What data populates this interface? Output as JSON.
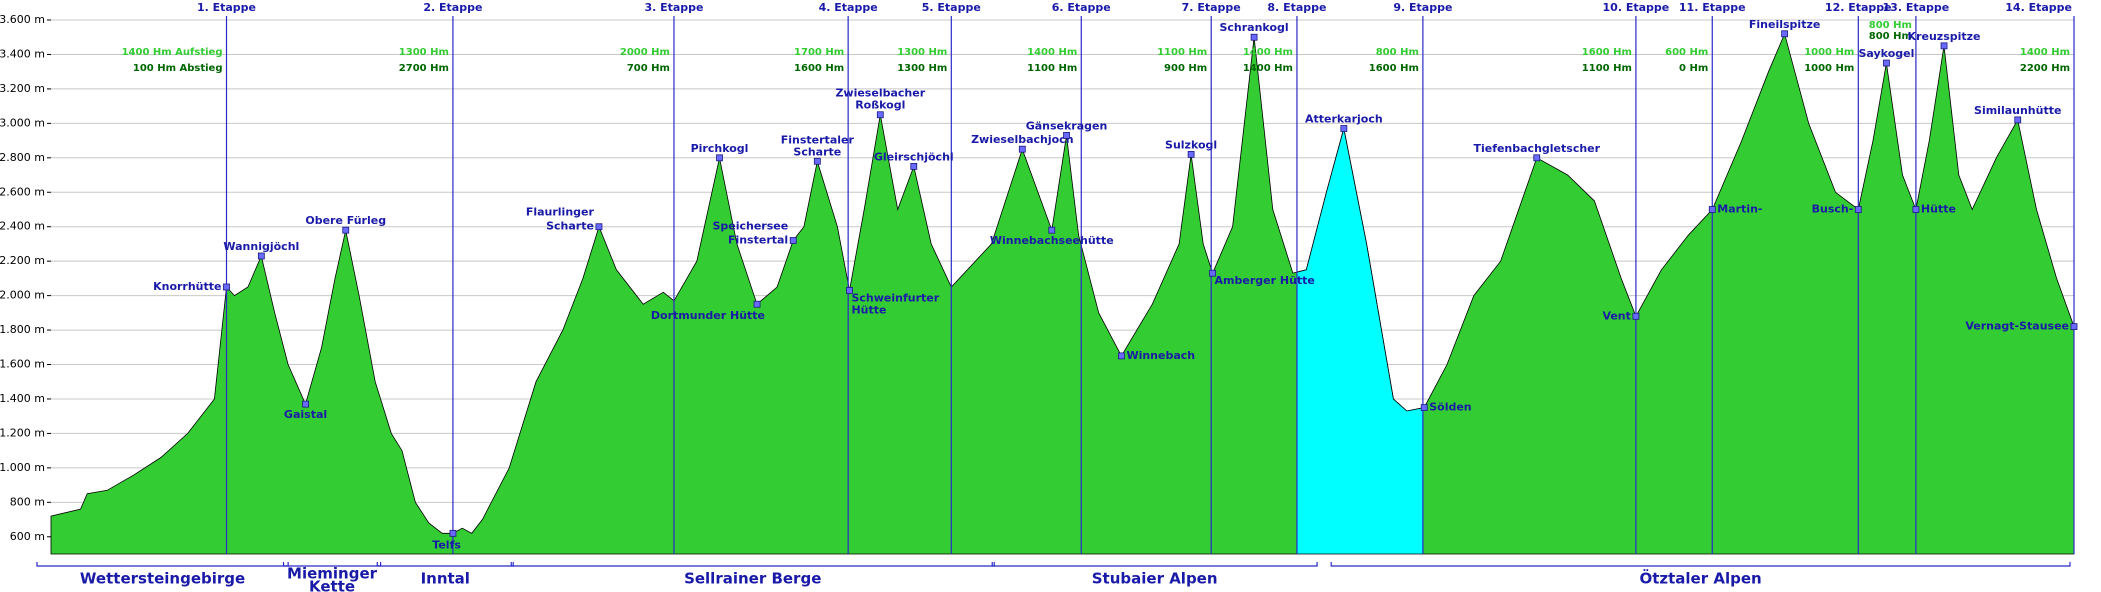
{
  "chart_data": {
    "type": "area",
    "ylim": [
      500,
      3600
    ],
    "yticks": [
      {
        "value": 600,
        "label": "600 m"
      },
      {
        "value": 800,
        "label": "800 m"
      },
      {
        "value": 1000,
        "label": "1.000 m"
      },
      {
        "value": 1200,
        "label": "1.200 m"
      },
      {
        "value": 1400,
        "label": "1.400 m"
      },
      {
        "value": 1600,
        "label": "1.600 m"
      },
      {
        "value": 1800,
        "label": "1.800 m"
      },
      {
        "value": 2000,
        "label": "2.000 m"
      },
      {
        "value": 2200,
        "label": "2.200 m"
      },
      {
        "value": 2400,
        "label": "2.400 m"
      },
      {
        "value": 2600,
        "label": "2.600 m"
      },
      {
        "value": 2800,
        "label": "2.800 m"
      },
      {
        "value": 3000,
        "label": "3.000 m"
      },
      {
        "value": 3200,
        "label": "3.200 m"
      },
      {
        "value": 3400,
        "label": "3.400 m"
      },
      {
        "value": 3600,
        "label": "3.600 m"
      }
    ],
    "grid": true,
    "xlim": [
      38,
      1548
    ],
    "color": "#33cc33",
    "profile": {
      "x": [
        38,
        60,
        65,
        80,
        100,
        120,
        140,
        160,
        169,
        175,
        185,
        195,
        205,
        215,
        228,
        240,
        250,
        258,
        268,
        280,
        292,
        300,
        310,
        320,
        330,
        338,
        345,
        352,
        360,
        380,
        400,
        420,
        435,
        447,
        460,
        480,
        495,
        503,
        520,
        537,
        550,
        565,
        580,
        592,
        600,
        610,
        625,
        634,
        645,
        657,
        670,
        682,
        695,
        710,
        740,
        763,
        785,
        796,
        805,
        820,
        837,
        860,
        880,
        889,
        898,
        905,
        920,
        936,
        950,
        965,
        975,
        990,
        1003,
        1020,
        1040,
        1050,
        1063,
        1080,
        1100,
        1120,
        1147,
        1170,
        1190,
        1210,
        1221,
        1240,
        1260,
        1278,
        1300,
        1320,
        1332,
        1350,
        1370,
        1387,
        1398,
        1408,
        1420,
        1430,
        1440,
        1451,
        1462,
        1472,
        1490,
        1506,
        1520,
        1535,
        1548
      ],
      "values": [
        720,
        760,
        850,
        870,
        960,
        1060,
        1200,
        1400,
        2050,
        2000,
        2050,
        2230,
        1900,
        1600,
        1370,
        1700,
        2100,
        2380,
        2000,
        1500,
        1200,
        1100,
        800,
        680,
        620,
        620,
        650,
        620,
        700,
        1000,
        1500,
        1800,
        2100,
        2400,
        2150,
        1950,
        2020,
        1970,
        2200,
        2800,
        2300,
        1950,
        2050,
        2320,
        2400,
        2780,
        2400,
        2030,
        2500,
        3050,
        2500,
        2750,
        2300,
        2050,
        2300,
        2850,
        2380,
        2930,
        2350,
        1900,
        1650,
        1950,
        2300,
        2820,
        2300,
        2130,
        2400,
        3500,
        2500,
        2130,
        2150,
        2600,
        2970,
        2300,
        1400,
        1330,
        1350,
        1600,
        2000,
        2200,
        2800,
        2700,
        2550,
        2100,
        1880,
        2150,
        2350,
        2500,
        2900,
        3300,
        3520,
        3000,
        2600,
        2500,
        2900,
        3350,
        2700,
        2500,
        2900,
        3450,
        2700,
        2500,
        2800,
        3020,
        2500,
        2100,
        1820
      ]
    },
    "highlight": {
      "from": 968,
      "to": 1062,
      "color": "#00ffff"
    },
    "stages": [
      {
        "label": "1. Etappe",
        "x": 169,
        "ascent": "1400 Hm Aufstieg",
        "descent": "100 Hm Abstieg"
      },
      {
        "label": "2. Etappe",
        "x": 338,
        "ascent": "1300 Hm",
        "descent": "2700 Hm"
      },
      {
        "label": "3. Etappe",
        "x": 503,
        "ascent": "2000 Hm",
        "descent": "700 Hm"
      },
      {
        "label": "4. Etappe",
        "x": 633,
        "ascent": "1700 Hm",
        "descent": "1600 Hm"
      },
      {
        "label": "5. Etappe",
        "x": 710,
        "ascent": "1300 Hm",
        "descent": "1300 Hm"
      },
      {
        "label": "6. Etappe",
        "x": 807,
        "ascent": "1400 Hm",
        "descent": "1100 Hm"
      },
      {
        "label": "7. Etappe",
        "x": 904,
        "ascent": "1100 Hm",
        "descent": "900 Hm"
      },
      {
        "label": "8. Etappe",
        "x": 968,
        "ascent": "1400 Hm",
        "descent": "1400 Hm"
      },
      {
        "label": "9. Etappe",
        "x": 1062,
        "ascent": "800 Hm",
        "descent": "1600 Hm"
      },
      {
        "label": "10. Etappe",
        "x": 1221,
        "ascent": "1600 Hm",
        "descent": "1100 Hm"
      },
      {
        "label": "11. Etappe",
        "x": 1278,
        "ascent": "600 Hm",
        "descent": "0 Hm"
      },
      {
        "label": "12. Etappe",
        "x": 1387,
        "ascent": "1000 Hm",
        "descent": "1000 Hm"
      },
      {
        "label": "13. Etappe",
        "x": 1430,
        "ascent": "800 Hm",
        "descent": "800 Hm"
      },
      {
        "label": "14. Etappe",
        "x": 1548,
        "ascent": "1400 Hm",
        "descent": "2200 Hm"
      }
    ],
    "points": [
      {
        "lines": [
          "Knorrhütte"
        ],
        "x": 169,
        "elev": 2050
      },
      {
        "lines": [
          "Wannigjöchl"
        ],
        "x": 195,
        "elev": 2230
      },
      {
        "lines": [
          "Gaistal"
        ],
        "x": 228,
        "elev": 1370
      },
      {
        "lines": [
          "Obere Fürleg"
        ],
        "x": 258,
        "elev": 2380
      },
      {
        "lines": [
          "Telfs"
        ],
        "x": 338,
        "elev": 620
      },
      {
        "lines": [
          "Flaurlinger",
          "Scharte"
        ],
        "x": 447,
        "elev": 2400
      },
      {
        "lines": [
          "Pirchkogl"
        ],
        "x": 537,
        "elev": 2800
      },
      {
        "lines": [
          "Dortmunder Hütte"
        ],
        "x": 565,
        "elev": 1950
      },
      {
        "lines": [
          "Speichersee",
          "Finstertal"
        ],
        "x": 592,
        "elev": 2320
      },
      {
        "lines": [
          "Finstertaler",
          "Scharte"
        ],
        "x": 610,
        "elev": 2780
      },
      {
        "lines": [
          "Zwieselbacher",
          "Roßkogl"
        ],
        "x": 657,
        "elev": 3050
      },
      {
        "lines": [
          "Gleirschjöchl"
        ],
        "x": 682,
        "elev": 2750
      },
      {
        "lines": [
          "Schweinfurter",
          "Hütte"
        ],
        "x": 634,
        "elev": 2030
      },
      {
        "lines": [
          "Zwieselbachjoch"
        ],
        "x": 763,
        "elev": 2850
      },
      {
        "lines": [
          "Gänsekragen"
        ],
        "x": 796,
        "elev": 2930
      },
      {
        "lines": [
          "Winnebachseehütte"
        ],
        "x": 785,
        "elev": 2380
      },
      {
        "lines": [
          "Winnebach"
        ],
        "x": 837,
        "elev": 1650
      },
      {
        "lines": [
          "Sulzkogl"
        ],
        "x": 889,
        "elev": 2820
      },
      {
        "lines": [
          "Amberger Hütte"
        ],
        "x": 905,
        "elev": 2130
      },
      {
        "lines": [
          "Schrankogl"
        ],
        "x": 936,
        "elev": 3500
      },
      {
        "lines": [
          "Atterkarjoch"
        ],
        "x": 1003,
        "elev": 2970
      },
      {
        "lines": [
          "Sölden"
        ],
        "x": 1063,
        "elev": 1350
      },
      {
        "lines": [
          "Tiefenbachgletscher"
        ],
        "x": 1147,
        "elev": 2800
      },
      {
        "lines": [
          "Vent"
        ],
        "x": 1221,
        "elev": 1880
      },
      {
        "lines": [
          "Martin-"
        ],
        "x": 1278,
        "elev": 2500
      },
      {
        "lines": [
          "Fineilspitze"
        ],
        "x": 1332,
        "elev": 3520
      },
      {
        "lines": [
          "Busch-"
        ],
        "x": 1387,
        "elev": 2500
      },
      {
        "lines": [
          "Saykogel"
        ],
        "x": 1408,
        "elev": 3350
      },
      {
        "lines": [
          "Hütte"
        ],
        "x": 1430,
        "elev": 2500
      },
      {
        "lines": [
          "Kreuzspitze"
        ],
        "x": 1451,
        "elev": 3450
      },
      {
        "lines": [
          "Similaunhütte"
        ],
        "x": 1506,
        "elev": 3020
      },
      {
        "lines": [
          "Vernagt-Stausee"
        ],
        "x": 1548,
        "elev": 1820
      }
    ],
    "regions": [
      {
        "lines": [
          "Wettersteingebirge"
        ],
        "from": 38,
        "to": 218
      },
      {
        "lines": [
          "Mieminger",
          "Kette"
        ],
        "from": 222,
        "to": 287
      },
      {
        "lines": [
          "Inntal"
        ],
        "from": 292,
        "to": 386
      },
      {
        "lines": [
          "Sellrainer Berge"
        ],
        "from": 392,
        "to": 745
      },
      {
        "lines": [
          "Stubaier Alpen"
        ],
        "from": 751,
        "to": 986
      },
      {
        "lines": [
          "Ötztaler Alpen"
        ],
        "from": 1004,
        "to": 1548
      }
    ]
  }
}
